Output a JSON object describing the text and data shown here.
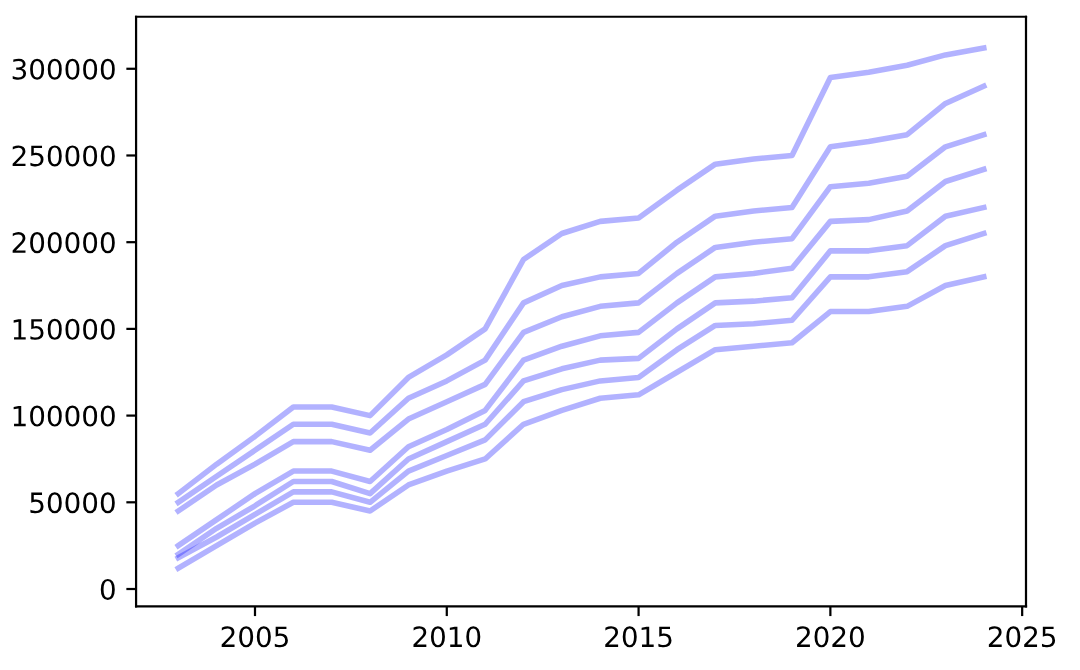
{
  "chart_data": {
    "type": "line",
    "x": [
      2003,
      2004,
      2005,
      2006,
      2007,
      2008,
      2009,
      2010,
      2011,
      2012,
      2013,
      2014,
      2015,
      2016,
      2017,
      2018,
      2019,
      2020,
      2021,
      2022,
      2023,
      2024
    ],
    "series": [
      {
        "color": "#0000ff",
        "values": [
          12000,
          25000,
          38000,
          50000,
          50000,
          45000,
          60000,
          68000,
          75000,
          95000,
          103000,
          110000,
          112000,
          125000,
          138000,
          140000,
          142000,
          160000,
          160000,
          163000,
          175000,
          180000
        ]
      },
      {
        "color": "#0000ff",
        "values": [
          18000,
          30000,
          43000,
          56000,
          56000,
          50000,
          68000,
          77000,
          86000,
          108000,
          115000,
          120000,
          122000,
          138000,
          152000,
          153000,
          155000,
          180000,
          180000,
          183000,
          198000,
          205000
        ]
      },
      {
        "color": "#0000ff",
        "values": [
          20000,
          35000,
          48000,
          62000,
          62000,
          55000,
          75000,
          85000,
          95000,
          120000,
          127000,
          132000,
          133000,
          150000,
          165000,
          166000,
          168000,
          195000,
          195000,
          198000,
          215000,
          220000
        ]
      },
      {
        "color": "#0000ff",
        "values": [
          25000,
          40000,
          55000,
          68000,
          68000,
          62000,
          82000,
          92000,
          103000,
          132000,
          140000,
          146000,
          148000,
          165000,
          180000,
          182000,
          185000,
          212000,
          213000,
          218000,
          235000,
          242000
        ]
      },
      {
        "color": "#0000ff",
        "values": [
          45000,
          60000,
          72000,
          85000,
          85000,
          80000,
          98000,
          108000,
          118000,
          148000,
          157000,
          163000,
          165000,
          182000,
          197000,
          200000,
          202000,
          232000,
          234000,
          238000,
          255000,
          262000
        ]
      },
      {
        "color": "#0000ff",
        "values": [
          50000,
          65000,
          80000,
          95000,
          95000,
          90000,
          110000,
          120000,
          132000,
          165000,
          175000,
          180000,
          182000,
          200000,
          215000,
          218000,
          220000,
          255000,
          258000,
          262000,
          280000,
          290000
        ]
      },
      {
        "color": "#0000ff",
        "values": [
          55000,
          72000,
          88000,
          105000,
          105000,
          100000,
          122000,
          135000,
          150000,
          190000,
          205000,
          212000,
          214000,
          230000,
          245000,
          248000,
          250000,
          295000,
          298000,
          302000,
          308000,
          312000
        ]
      }
    ],
    "xlim": [
      2001.9,
      2025.1
    ],
    "ylim": [
      -10000,
      330000
    ],
    "xticks": [
      2005,
      2010,
      2015,
      2020,
      2025
    ],
    "yticks": [
      0,
      50000,
      100000,
      150000,
      200000,
      250000,
      300000
    ],
    "grid": false,
    "legend": false,
    "marker": "none",
    "line_style": "solid"
  }
}
